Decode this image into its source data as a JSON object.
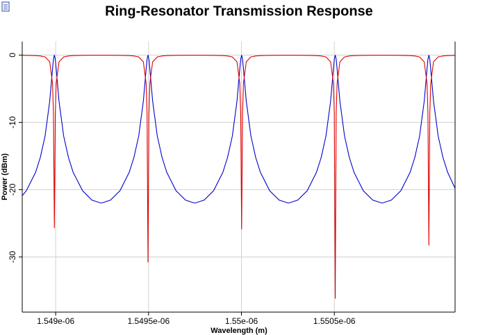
{
  "chart_data": {
    "type": "line",
    "title": "Ring-Resonator Transmission Response",
    "x_label": "Wavelength (m)",
    "y_label": "Power (dBm)",
    "x": [
      1.54882e-06,
      1.548842e-06,
      1.548892e-06,
      1.548917e-06,
      1.548943e-06,
      1.548968e-06,
      1.548983e-06,
      1.548988e-06,
      1.548993e-06,
      1.548998e-06,
      1.549003e-06,
      1.549018e-06,
      1.549043e-06,
      1.549069e-06,
      1.549094e-06,
      1.549145e-06,
      1.549195e-06,
      1.549245e-06,
      1.549295e-06,
      1.549346e-06,
      1.549396e-06,
      1.549421e-06,
      1.549447e-06,
      1.549472e-06,
      1.549487e-06,
      1.549492e-06,
      1.549497e-06,
      1.549502e-06,
      1.549507e-06,
      1.549522e-06,
      1.549547e-06,
      1.549573e-06,
      1.549598e-06,
      1.549648e-06,
      1.549699e-06,
      1.549749e-06,
      1.549799e-06,
      1.54985e-06,
      1.5499e-06,
      1.549925e-06,
      1.549951e-06,
      1.549976e-06,
      1.549991e-06,
      1.549996e-06,
      1.550001e-06,
      1.550006e-06,
      1.550011e-06,
      1.550026e-06,
      1.550051e-06,
      1.550077e-06,
      1.550102e-06,
      1.550152e-06,
      1.550203e-06,
      1.550253e-06,
      1.550303e-06,
      1.550354e-06,
      1.550404e-06,
      1.550429e-06,
      1.550455e-06,
      1.55048e-06,
      1.550495e-06,
      1.5505e-06,
      1.550505e-06,
      1.55051e-06,
      1.550515e-06,
      1.55053e-06,
      1.550555e-06,
      1.550581e-06,
      1.550606e-06,
      1.550656e-06,
      1.550707e-06,
      1.550757e-06,
      1.550807e-06,
      1.550858e-06,
      1.550908e-06,
      1.550933e-06,
      1.550959e-06,
      1.550984e-06,
      1.550999e-06,
      1.551004e-06,
      1.551009e-06,
      1.551014e-06,
      1.551019e-06,
      1.551034e-06,
      1.551059e-06,
      1.551085e-06,
      1.55111e-06,
      1.55115e-06
    ],
    "series": [
      {
        "color": "#0000cc",
        "values": [
          -20.9,
          -20.16,
          -17.42,
          -15.24,
          -12.04,
          -6.85,
          -2.09,
          -0.62,
          0,
          -0.62,
          -2.09,
          -6.85,
          -12.04,
          -15.24,
          -17.42,
          -20.16,
          -21.55,
          -22.0,
          -21.55,
          -20.16,
          -17.42,
          -15.24,
          -12.04,
          -6.85,
          -2.09,
          -0.62,
          0,
          -0.62,
          -2.09,
          -6.85,
          -12.04,
          -15.24,
          -17.42,
          -20.16,
          -21.55,
          -22.0,
          -21.55,
          -20.16,
          -17.42,
          -15.24,
          -12.04,
          -6.85,
          -2.09,
          -0.62,
          0,
          -0.62,
          -2.09,
          -6.85,
          -12.04,
          -15.24,
          -17.42,
          -20.16,
          -21.55,
          -22.0,
          -21.55,
          -20.16,
          -17.42,
          -15.24,
          -12.04,
          -6.85,
          -2.09,
          -0.62,
          0,
          -0.62,
          -2.09,
          -6.85,
          -12.04,
          -15.24,
          -17.42,
          -20.16,
          -21.55,
          -22.0,
          -21.55,
          -20.16,
          -17.42,
          -15.24,
          -12.04,
          -6.85,
          -2.09,
          -0.62,
          0,
          -0.62,
          -2.09,
          -6.85,
          -12.04,
          -15.24,
          -17.42,
          -19.8
        ]
      },
      {
        "color": "#dd0000",
        "values": [
          -0.04,
          -0.04,
          -0.08,
          -0.13,
          -0.28,
          -1.0,
          -4.2,
          -8.7,
          -25.7,
          -8.7,
          -4.2,
          -1.0,
          -0.28,
          -0.13,
          -0.08,
          -0.04,
          -0.03,
          -0.03,
          -0.03,
          -0.04,
          -0.08,
          -0.13,
          -0.28,
          -1.0,
          -4.2,
          -8.7,
          -30.8,
          -8.7,
          -4.2,
          -1.0,
          -0.28,
          -0.13,
          -0.08,
          -0.04,
          -0.03,
          -0.03,
          -0.03,
          -0.04,
          -0.08,
          -0.13,
          -0.28,
          -1.0,
          -4.2,
          -8.7,
          -25.9,
          -8.7,
          -4.2,
          -1.0,
          -0.28,
          -0.13,
          -0.08,
          -0.04,
          -0.03,
          -0.03,
          -0.03,
          -0.04,
          -0.08,
          -0.13,
          -0.28,
          -1.0,
          -4.2,
          -8.7,
          -36.2,
          -8.7,
          -4.2,
          -1.0,
          -0.28,
          -0.13,
          -0.08,
          -0.04,
          -0.03,
          -0.03,
          -0.03,
          -0.04,
          -0.08,
          -0.13,
          -0.28,
          -1.0,
          -4.2,
          -8.7,
          -28.3,
          -8.7,
          -4.2,
          -1.0,
          -0.28,
          -0.13,
          -0.08,
          -0.04
        ]
      }
    ],
    "xlim": [
      1.54882e-06,
      1.55115e-06
    ],
    "ylim": [
      -38.2,
      2
    ],
    "xticks": [
      {
        "value": 1.549e-06,
        "label": "1.549e-06"
      },
      {
        "value": 1.5495e-06,
        "label": "1.5495e-06"
      },
      {
        "value": 1.55e-06,
        "label": "1.55e-06"
      },
      {
        "value": 1.5505e-06,
        "label": "1.5505e-06"
      }
    ],
    "yticks": [
      0,
      -10,
      -20,
      -30
    ],
    "grid": true
  }
}
